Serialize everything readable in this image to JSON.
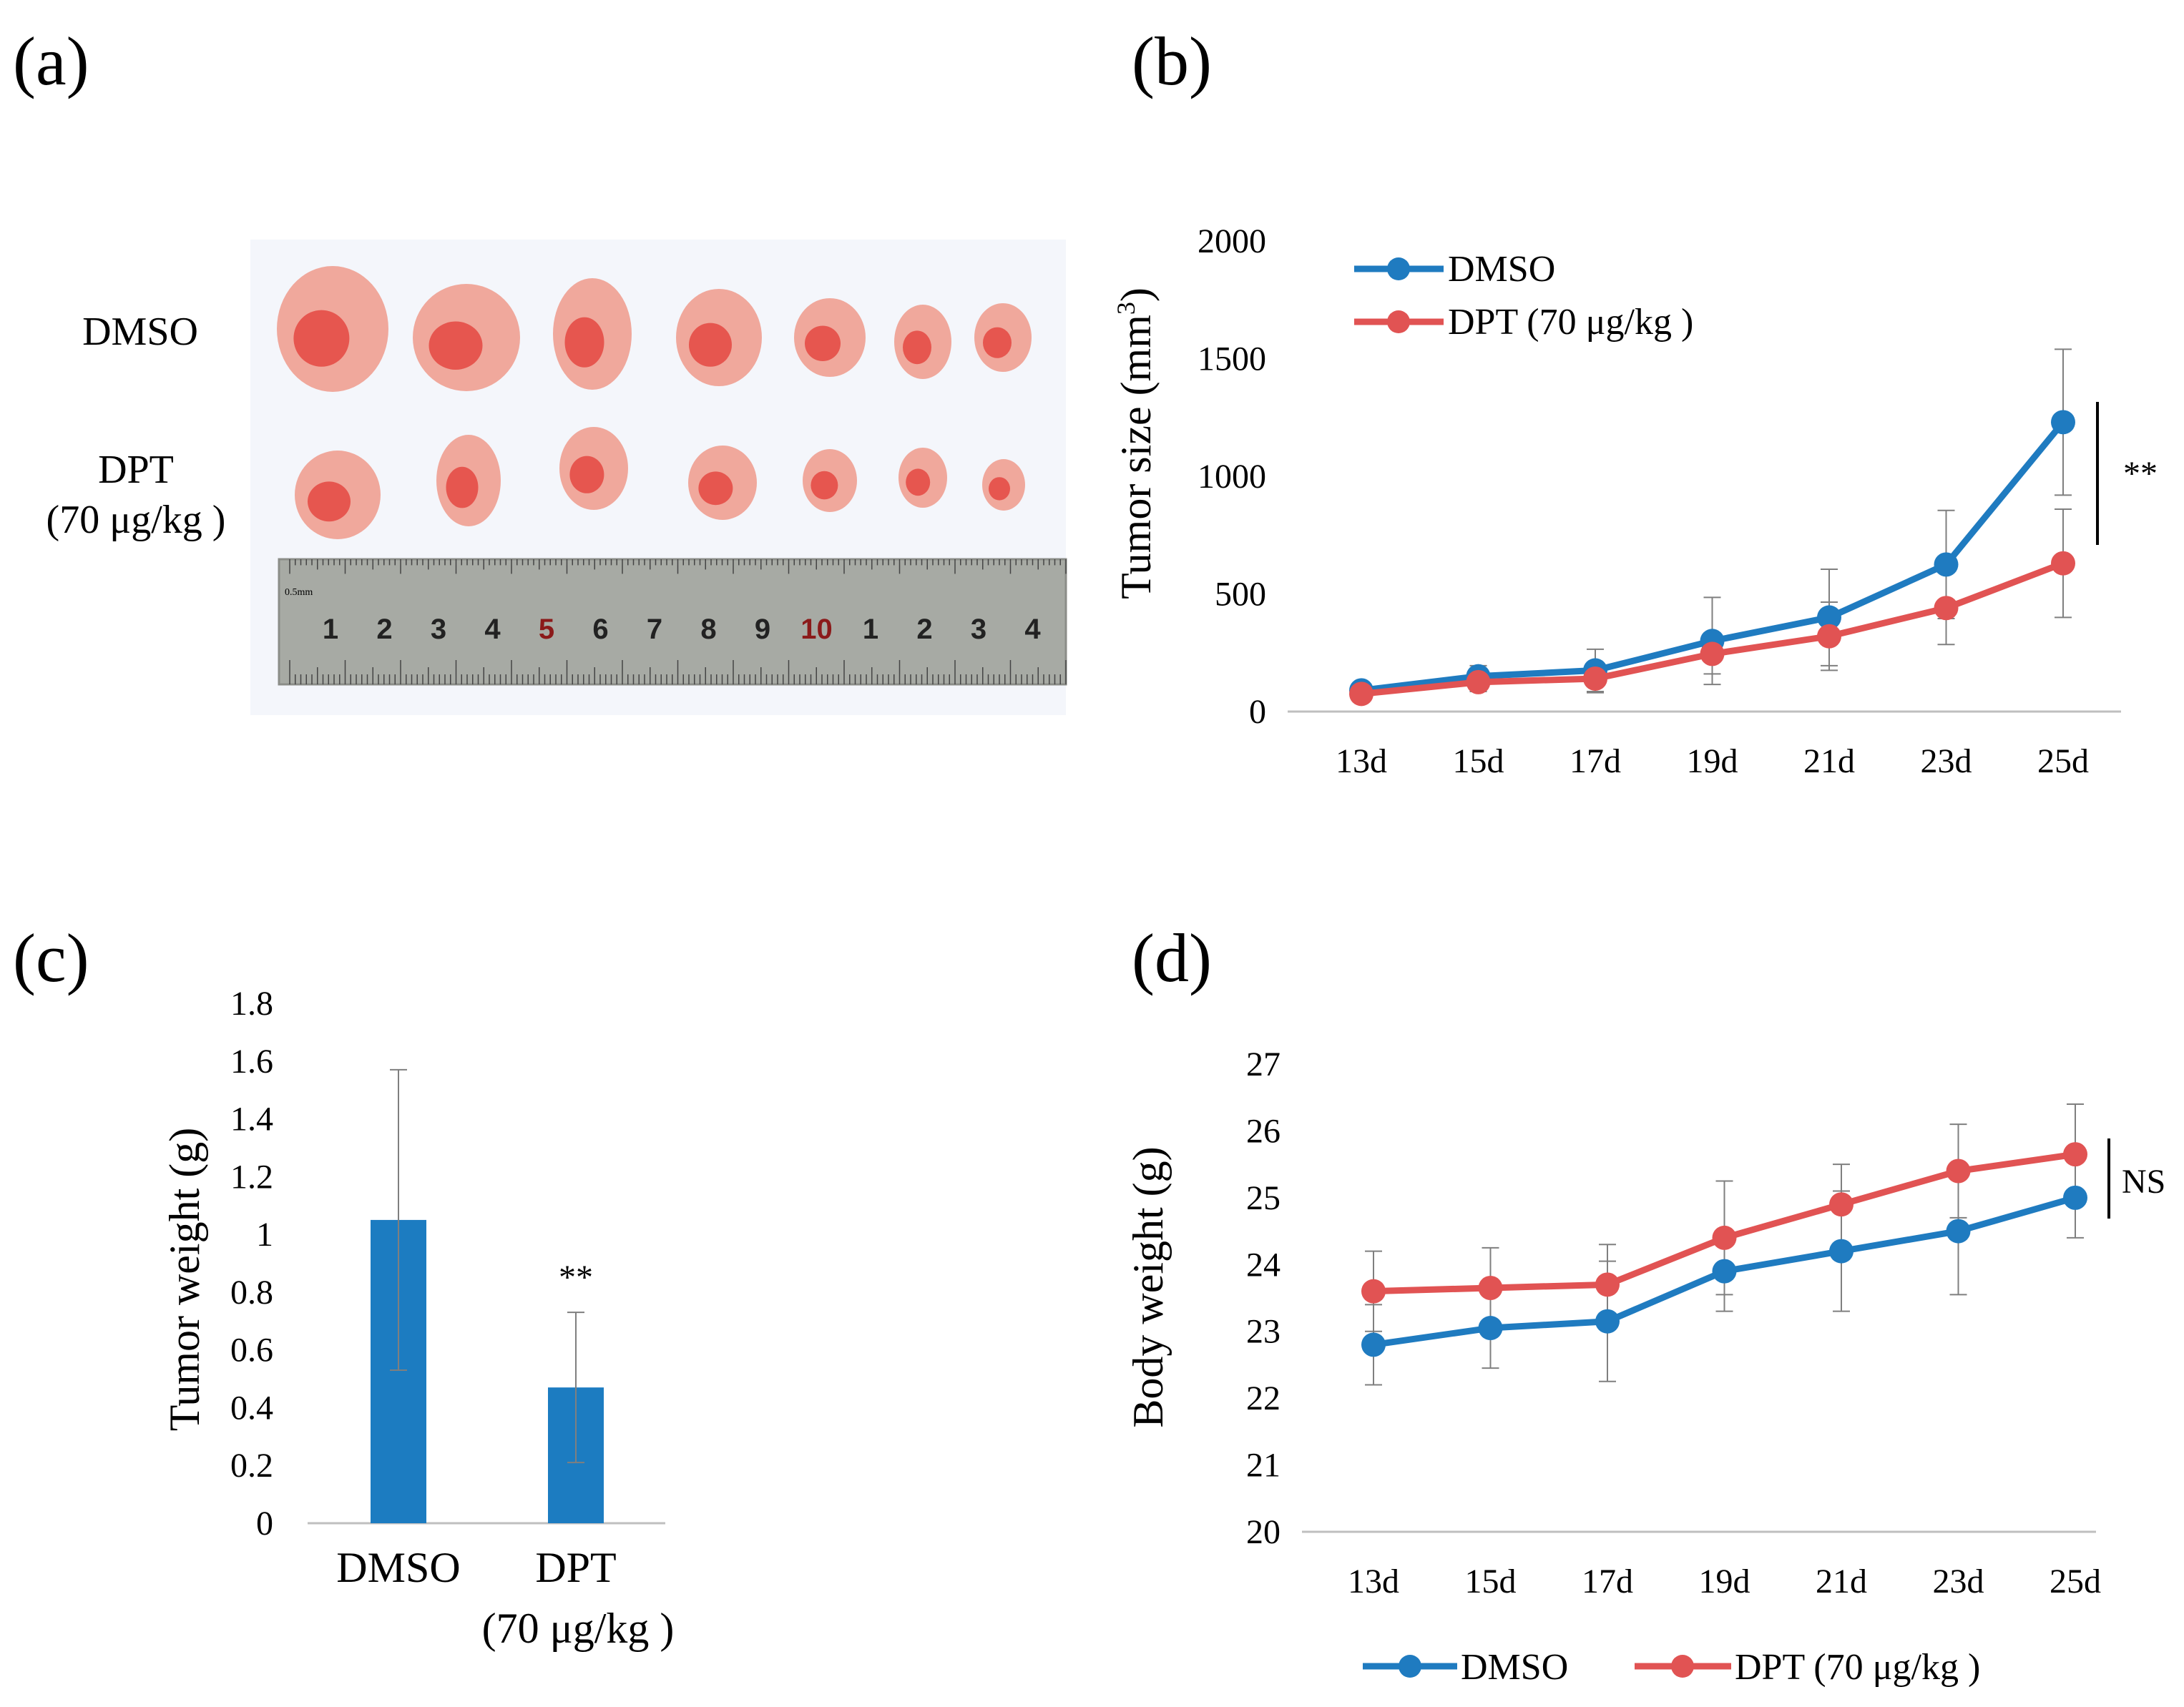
{
  "panels": {
    "a": {
      "letter": "(a)",
      "row_labels": [
        "DMSO",
        "DPT",
        "(70 μg/kg )"
      ],
      "ruler_numbers": [
        "1",
        "2",
        "3",
        "4",
        "5",
        "6",
        "7",
        "8",
        "9",
        "10",
        "1",
        "2",
        "3",
        "4"
      ],
      "ruler_small_label": "0.5mm",
      "colors": {
        "tissue": "#f0a89c",
        "tissue_dark": "#e33b36",
        "ruler": "#a7aaa4",
        "background": "#f4f6fb"
      }
    },
    "b": {
      "letter": "(b)",
      "significance": "**"
    },
    "c": {
      "letter": "(c)",
      "significance": "**"
    },
    "d": {
      "letter": "(d)",
      "significance": "NS"
    }
  },
  "colors": {
    "dmso": "#1f7bc0",
    "dpt": "#e15353",
    "bar": "#1c7cc1",
    "axis": "#bfbfbf",
    "errorbar": "#7f7f7f"
  },
  "chart_data": [
    {
      "id": "b",
      "type": "line",
      "categories": [
        "13d",
        "15d",
        "17d",
        "19d",
        "21d",
        "23d",
        "25d"
      ],
      "series": [
        {
          "name": "DMSO",
          "values": [
            90,
            150,
            175,
            300,
            400,
            625,
            1230
          ],
          "errors": [
            20,
            45,
            90,
            185,
            205,
            230,
            310
          ]
        },
        {
          "name": "DPT (70 μg/kg )",
          "values": [
            75,
            125,
            140,
            245,
            320,
            440,
            630
          ],
          "errors": [
            15,
            40,
            60,
            85,
            145,
            155,
            230
          ]
        }
      ],
      "ylabel": "Tumor size (mm",
      "ylabel_sup": "3",
      "ylabel_end": ")",
      "ylim": [
        0,
        2000
      ],
      "yticks": [
        0,
        500,
        1000,
        1500,
        2000
      ],
      "legend": [
        "DMSO",
        "DPT (70 μg/kg )"
      ],
      "legend_position": "top-left"
    },
    {
      "id": "c",
      "type": "bar",
      "categories": [
        "DMSO",
        "DPT"
      ],
      "category_sublabels": [
        "",
        "(70 μg/kg )"
      ],
      "values": [
        1.05,
        0.47
      ],
      "errors": [
        0.52,
        0.26
      ],
      "ylabel": "Tumor weight (g)",
      "ylim": [
        0,
        1.8
      ],
      "yticks": [
        "0",
        "0.2",
        "0.4",
        "0.6",
        "0.8",
        "1",
        "1.2",
        "1.4",
        "1.6",
        "1.8"
      ]
    },
    {
      "id": "d",
      "type": "line",
      "categories": [
        "13d",
        "15d",
        "17d",
        "19d",
        "21d",
        "23d",
        "25d"
      ],
      "series": [
        {
          "name": "DMSO",
          "values": [
            22.8,
            23.05,
            23.15,
            23.9,
            24.2,
            24.5,
            25.0
          ],
          "errors": [
            0.6,
            0.6,
            0.9,
            0.6,
            0.9,
            0.95,
            0.6
          ]
        },
        {
          "name": "DPT (70 μg/kg )",
          "values": [
            23.6,
            23.65,
            23.7,
            24.4,
            24.9,
            25.4,
            25.65
          ],
          "errors": [
            0.6,
            0.6,
            0.6,
            0.85,
            0.6,
            0.7,
            0.75
          ]
        }
      ],
      "ylabel": "Body weight (g)",
      "ylim": [
        20,
        27
      ],
      "yticks": [
        20,
        21,
        22,
        23,
        24,
        25,
        26,
        27
      ],
      "legend": [
        "DMSO",
        "DPT (70 μg/kg )"
      ],
      "legend_position": "bottom"
    }
  ]
}
